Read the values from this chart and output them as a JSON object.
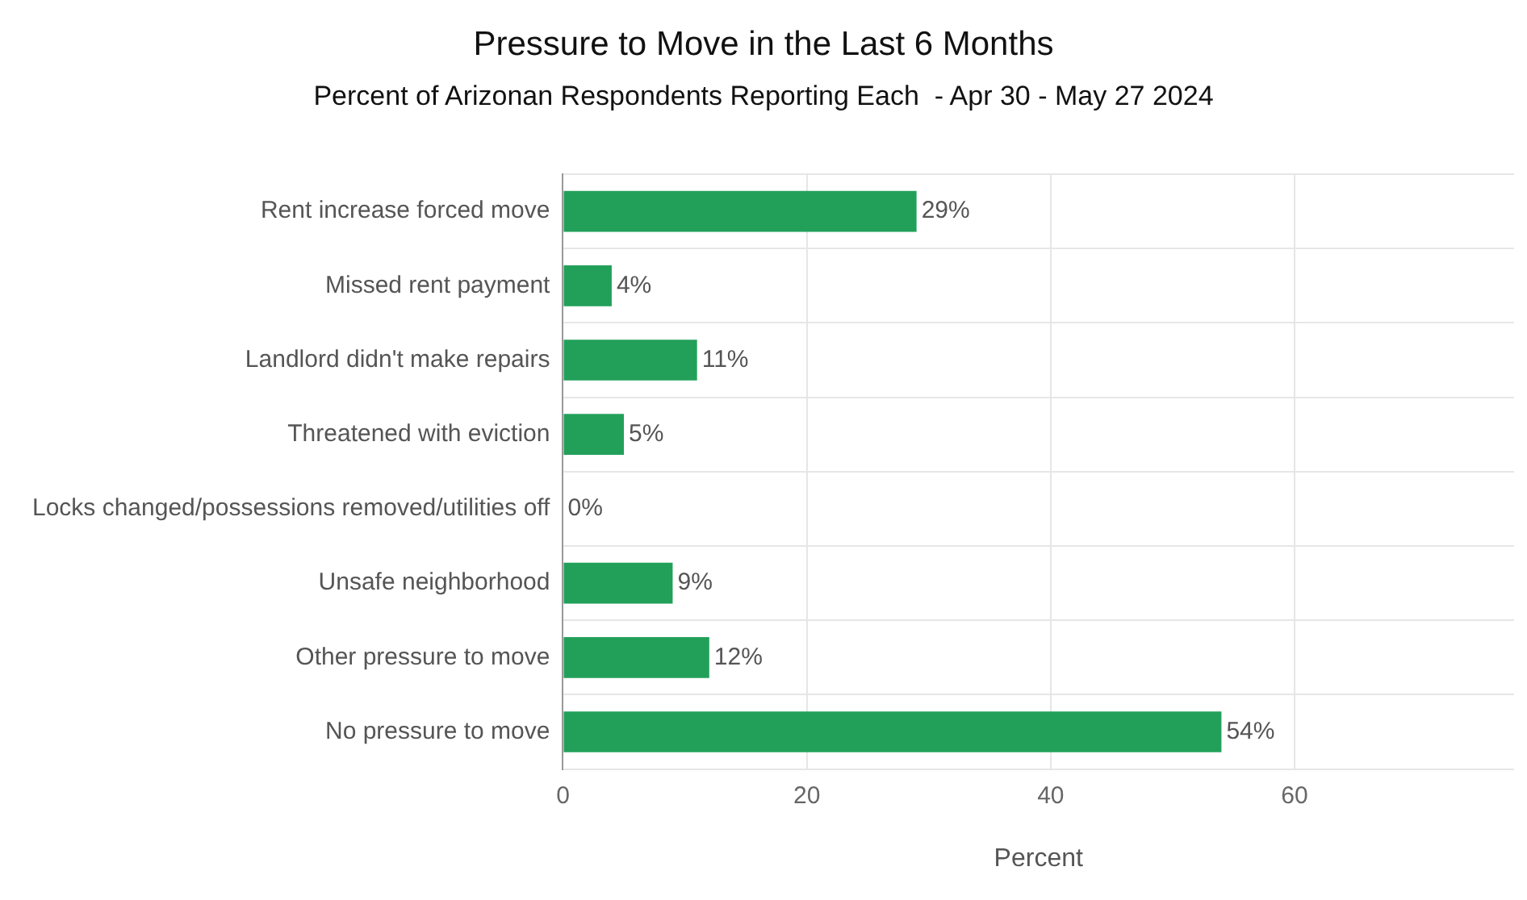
{
  "chart_data": {
    "type": "bar",
    "orientation": "horizontal",
    "title": "Pressure to Move in the Last 6 Months",
    "subtitle": "Percent of Arizonan Respondents Reporting Each  - Apr 30 - May 27 2024",
    "xlabel": "Percent",
    "categories": [
      "Rent increase forced move",
      "Missed rent payment",
      "Landlord didn't make repairs",
      "Threatened with eviction",
      "Locks changed/possessions removed/utilities off",
      "Unsafe neighborhood",
      "Other pressure to move",
      "No pressure to move"
    ],
    "values": [
      29,
      4,
      11,
      5,
      0,
      9,
      12,
      54
    ],
    "value_labels": [
      "29%",
      "4%",
      "11%",
      "5%",
      "0%",
      "9%",
      "12%",
      "54%"
    ],
    "color": "#22a05a",
    "xlim": [
      0,
      78
    ],
    "xticks": [
      0,
      20,
      40,
      60
    ],
    "grid": true
  }
}
